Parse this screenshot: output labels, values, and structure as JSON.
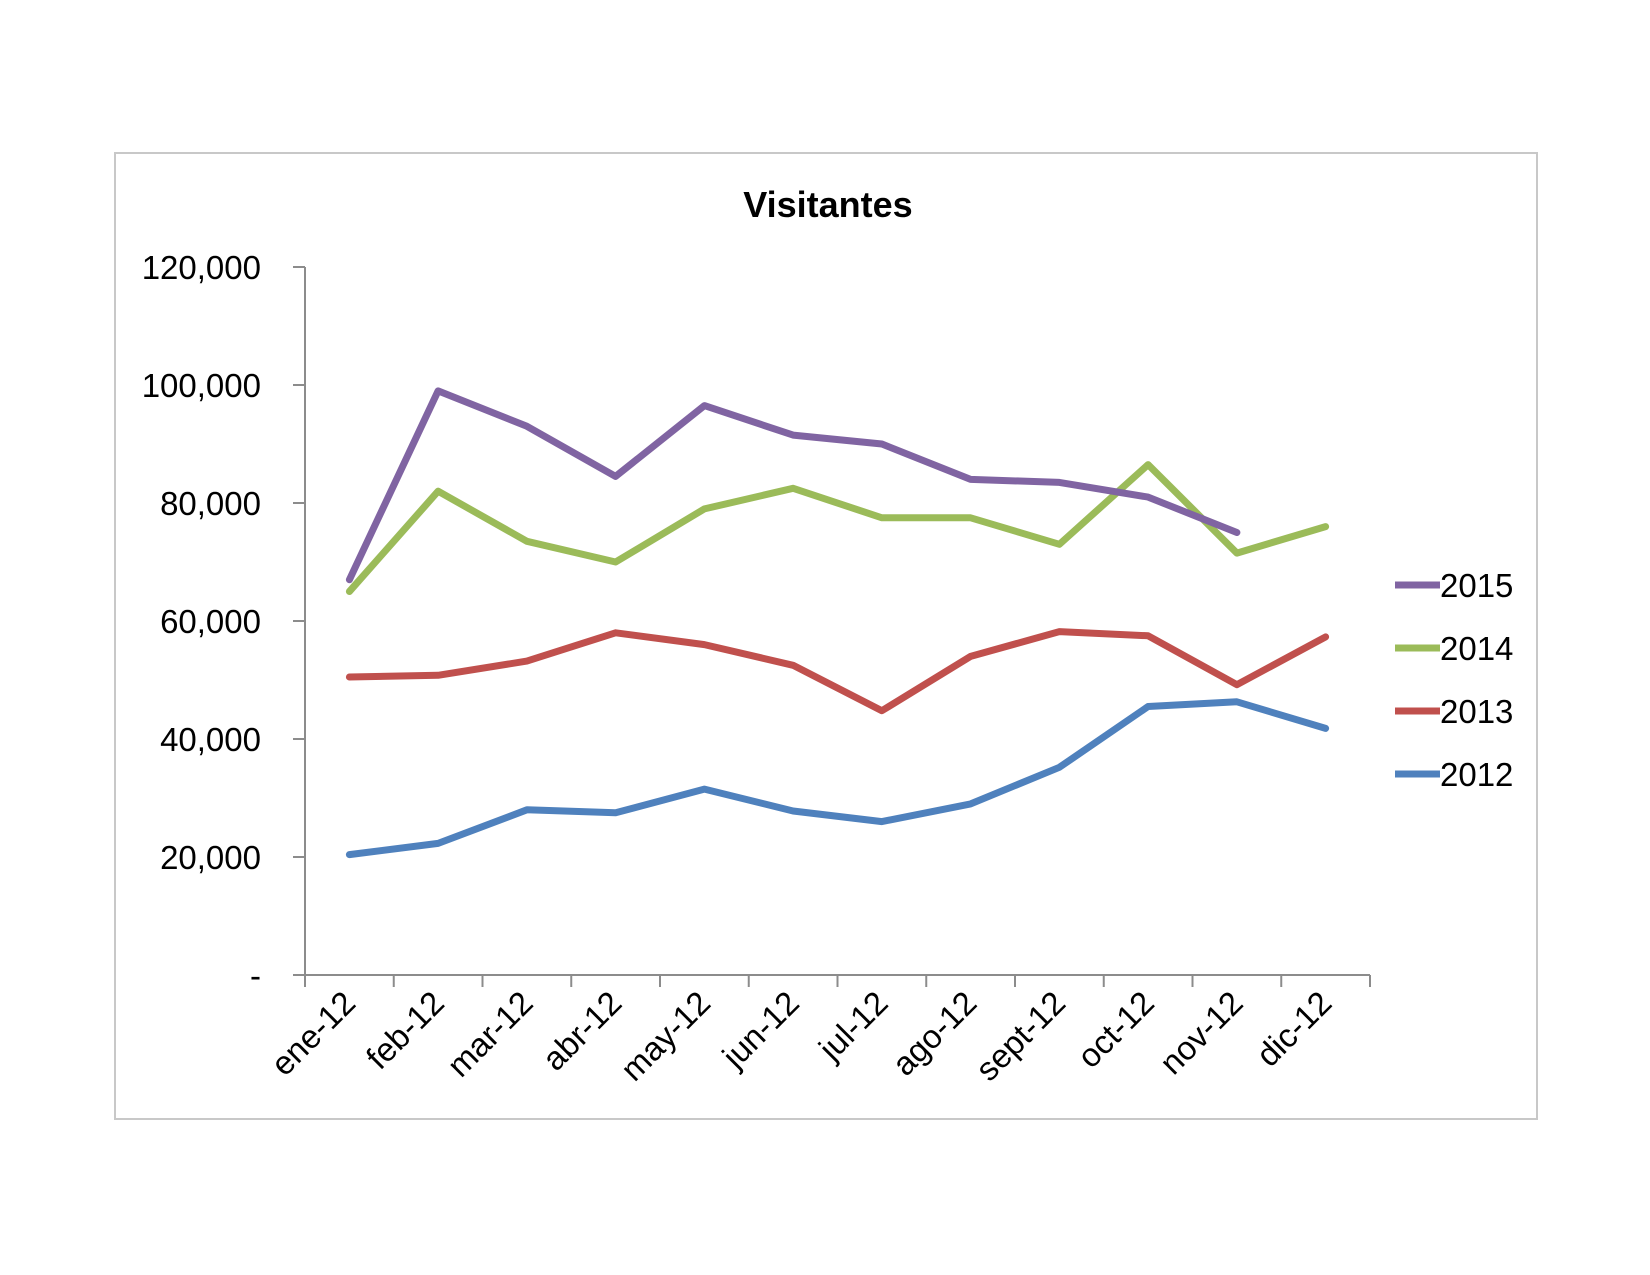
{
  "chart_data": {
    "type": "line",
    "title": "Visitantes",
    "xlabel": "",
    "ylabel": "",
    "categories": [
      "ene-12",
      "feb-12",
      "mar-12",
      "abr-12",
      "may-12",
      "jun-12",
      "jul-12",
      "ago-12",
      "sept-12",
      "oct-12",
      "nov-12",
      "dic-12"
    ],
    "ylim": [
      0,
      120000
    ],
    "yticks": [
      0,
      20000,
      40000,
      60000,
      80000,
      100000,
      120000
    ],
    "ytick_labels": [
      "-",
      "20,000",
      "40,000",
      "60,000",
      "80,000",
      "100,000",
      "120,000"
    ],
    "grid": false,
    "legend_position": "right",
    "series": [
      {
        "name": "2015",
        "color": "#8064a2",
        "values": [
          67000,
          99000,
          93000,
          84500,
          96500,
          91500,
          90000,
          84000,
          83500,
          81000,
          75000,
          null
        ]
      },
      {
        "name": "2014",
        "color": "#9bbb59",
        "values": [
          65000,
          82000,
          73500,
          70000,
          79000,
          82500,
          77500,
          77500,
          73000,
          86500,
          71500,
          76000
        ]
      },
      {
        "name": "2013",
        "color": "#c0504d",
        "values": [
          50500,
          50800,
          53200,
          58000,
          56000,
          52500,
          44800,
          54000,
          58200,
          57500,
          49200,
          57300
        ]
      },
      {
        "name": "2012",
        "color": "#4f81bd",
        "values": [
          20400,
          22300,
          28000,
          27500,
          31500,
          27800,
          26000,
          29000,
          35200,
          45500,
          46300,
          41800
        ]
      }
    ]
  }
}
